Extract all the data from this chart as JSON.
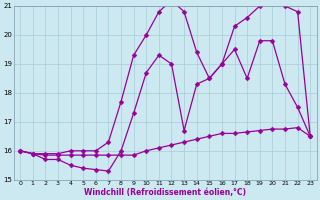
{
  "xlabel": "Windchill (Refroidissement éolien,°C)",
  "xlim": [
    -0.5,
    23.5
  ],
  "ylim": [
    15,
    21
  ],
  "xticks": [
    0,
    1,
    2,
    3,
    4,
    5,
    6,
    7,
    8,
    9,
    10,
    11,
    12,
    13,
    14,
    15,
    16,
    17,
    18,
    19,
    20,
    21,
    22,
    23
  ],
  "yticks": [
    15,
    16,
    17,
    18,
    19,
    20,
    21
  ],
  "bg_color": "#cce8f0",
  "grid_color": "#a8ccd8",
  "line_color": "#990099",
  "line1_x": [
    0,
    1,
    2,
    3,
    4,
    5,
    6,
    7,
    8,
    9,
    10,
    11,
    12,
    13,
    14,
    15,
    16,
    17,
    18,
    19,
    20,
    21,
    22,
    23
  ],
  "line1_y": [
    16.0,
    15.9,
    15.85,
    15.85,
    15.85,
    15.85,
    15.85,
    15.85,
    15.85,
    15.85,
    16.0,
    16.1,
    16.2,
    16.3,
    16.4,
    16.5,
    16.6,
    16.6,
    16.65,
    16.7,
    16.75,
    16.75,
    16.8,
    16.5
  ],
  "line2_x": [
    0,
    1,
    2,
    3,
    4,
    5,
    6,
    7,
    8,
    9,
    10,
    11,
    12,
    13,
    14,
    15,
    16,
    17,
    18,
    19,
    20,
    21,
    22,
    23
  ],
  "line2_y": [
    16.0,
    15.9,
    15.7,
    15.7,
    15.5,
    15.4,
    15.35,
    15.3,
    16.0,
    17.3,
    18.7,
    19.3,
    19.0,
    16.7,
    18.3,
    18.5,
    19.0,
    19.5,
    18.5,
    19.8,
    19.8,
    18.3,
    17.5,
    16.5
  ],
  "line3_x": [
    0,
    1,
    2,
    3,
    4,
    5,
    6,
    7,
    8,
    9,
    10,
    11,
    12,
    13,
    14,
    15,
    16,
    17,
    18,
    19,
    20,
    21,
    22,
    23
  ],
  "line3_y": [
    16.0,
    15.9,
    15.9,
    15.9,
    16.0,
    16.0,
    16.0,
    16.3,
    17.7,
    19.3,
    20.0,
    20.8,
    21.2,
    20.8,
    19.4,
    18.5,
    19.0,
    20.3,
    20.6,
    21.0,
    21.2,
    21.0,
    20.8,
    16.5
  ]
}
